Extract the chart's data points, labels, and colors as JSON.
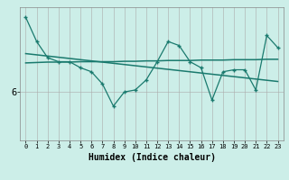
{
  "xlabel": "Humidex (Indice chaleur)",
  "background_color": "#cceee8",
  "line_color": "#1a7a6e",
  "grid_color": "#aaaaaa",
  "x_values": [
    0,
    1,
    2,
    3,
    4,
    5,
    6,
    7,
    8,
    9,
    10,
    11,
    12,
    13,
    14,
    15,
    16,
    17,
    18,
    19,
    20,
    21,
    22,
    23
  ],
  "y_main": [
    7.85,
    7.25,
    6.85,
    6.75,
    6.75,
    6.6,
    6.5,
    6.2,
    5.65,
    6.0,
    6.05,
    6.3,
    6.75,
    7.25,
    7.15,
    6.75,
    6.6,
    5.8,
    6.5,
    6.55,
    6.55,
    6.05,
    7.4,
    7.1
  ],
  "y_trend": [
    6.95,
    6.92,
    6.89,
    6.86,
    6.83,
    6.8,
    6.77,
    6.74,
    6.71,
    6.68,
    6.65,
    6.62,
    6.59,
    6.56,
    6.53,
    6.5,
    6.47,
    6.44,
    6.41,
    6.38,
    6.35,
    6.32,
    6.29,
    6.26
  ],
  "y_flat": [
    6.72,
    6.73,
    6.74,
    6.74,
    6.74,
    6.75,
    6.75,
    6.75,
    6.75,
    6.76,
    6.76,
    6.77,
    6.77,
    6.78,
    6.78,
    6.78,
    6.79,
    6.79,
    6.79,
    6.8,
    6.8,
    6.8,
    6.81,
    6.81
  ],
  "ytick_value": 6,
  "ytick_label": "6",
  "ylim": [
    4.8,
    8.1
  ],
  "xlim": [
    -0.5,
    23.5
  ]
}
